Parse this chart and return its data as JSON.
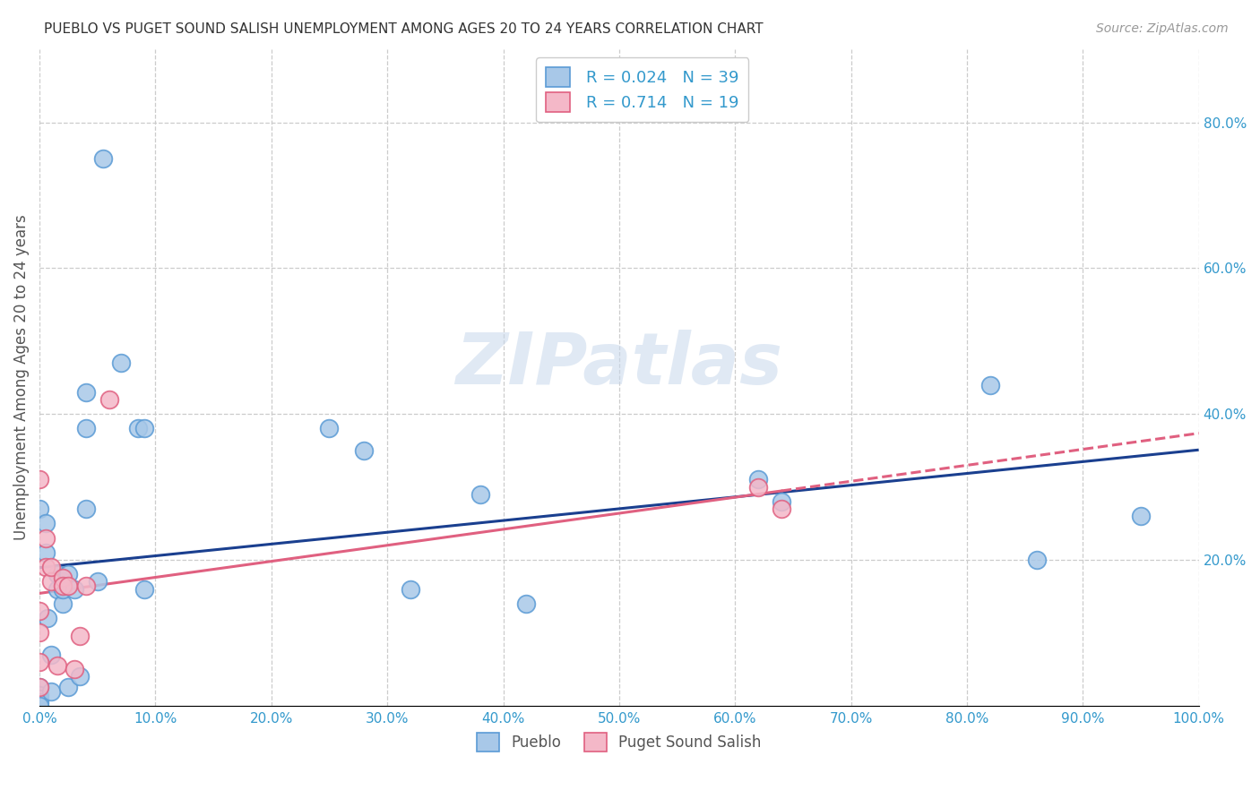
{
  "title": "PUEBLO VS PUGET SOUND SALISH UNEMPLOYMENT AMONG AGES 20 TO 24 YEARS CORRELATION CHART",
  "source": "Source: ZipAtlas.com",
  "ylabel": "Unemployment Among Ages 20 to 24 years",
  "xlim": [
    0,
    1.0
  ],
  "ylim": [
    0,
    0.9
  ],
  "ytick_vals": [
    0.2,
    0.4,
    0.6,
    0.8
  ],
  "xtick_vals": [
    0.0,
    0.1,
    0.2,
    0.3,
    0.4,
    0.5,
    0.6,
    0.7,
    0.8,
    0.9,
    1.0
  ],
  "pueblo_color": "#a8c8e8",
  "puget_color": "#f4b8c8",
  "pueblo_edge_color": "#5b9bd5",
  "puget_edge_color": "#e06080",
  "trend_pueblo_color": "#1a3f8f",
  "trend_puget_color": "#e06080",
  "pueblo_R": 0.024,
  "pueblo_N": 39,
  "puget_R": 0.714,
  "puget_N": 19,
  "watermark": "ZIPatlas",
  "pueblo_x": [
    0.0,
    0.0,
    0.0,
    0.0,
    0.0,
    0.0,
    0.005,
    0.005,
    0.007,
    0.01,
    0.01,
    0.015,
    0.015,
    0.02,
    0.02,
    0.02,
    0.025,
    0.025,
    0.03,
    0.035,
    0.04,
    0.04,
    0.04,
    0.05,
    0.055,
    0.07,
    0.085,
    0.09,
    0.09,
    0.25,
    0.28,
    0.32,
    0.38,
    0.42,
    0.62,
    0.64,
    0.82,
    0.86,
    0.95
  ],
  "pueblo_y": [
    0.27,
    0.025,
    0.015,
    0.01,
    0.005,
    0.0,
    0.25,
    0.21,
    0.12,
    0.07,
    0.02,
    0.18,
    0.16,
    0.17,
    0.14,
    0.16,
    0.025,
    0.18,
    0.16,
    0.04,
    0.38,
    0.43,
    0.27,
    0.17,
    0.75,
    0.47,
    0.38,
    0.16,
    0.38,
    0.38,
    0.35,
    0.16,
    0.29,
    0.14,
    0.31,
    0.28,
    0.44,
    0.2,
    0.26
  ],
  "puget_x": [
    0.0,
    0.0,
    0.0,
    0.0,
    0.0,
    0.005,
    0.005,
    0.01,
    0.01,
    0.015,
    0.02,
    0.02,
    0.025,
    0.03,
    0.035,
    0.04,
    0.06,
    0.62,
    0.64
  ],
  "puget_y": [
    0.31,
    0.13,
    0.1,
    0.06,
    0.025,
    0.23,
    0.19,
    0.17,
    0.19,
    0.055,
    0.175,
    0.165,
    0.165,
    0.05,
    0.095,
    0.165,
    0.42,
    0.3,
    0.27
  ]
}
